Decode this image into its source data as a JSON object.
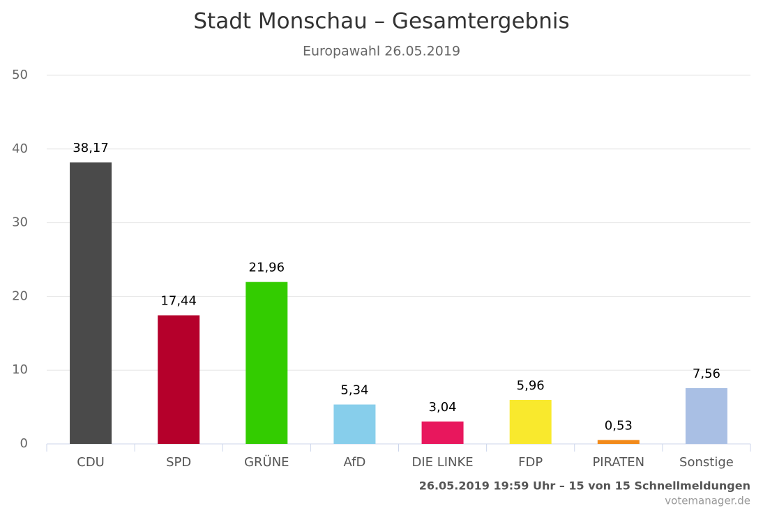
{
  "chart_data": {
    "type": "bar",
    "title": "Stadt Monschau – Gesamtergebnis",
    "subtitle": "Europawahl 26.05.2019",
    "categories": [
      "CDU",
      "SPD",
      "GRÜNE",
      "AfD",
      "DIE LINKE",
      "FDP",
      "PIRATEN",
      "Sonstige"
    ],
    "values": [
      38.17,
      17.44,
      21.96,
      5.34,
      3.04,
      5.96,
      0.53,
      7.56
    ],
    "value_labels": [
      "38,17",
      "17,44",
      "21,96",
      "5,34",
      "3,04",
      "5,96",
      "0,53",
      "7,56"
    ],
    "colors": [
      "#4a4a4a",
      "#b5002b",
      "#33cc00",
      "#87ceeb",
      "#e8175d",
      "#f9e92d",
      "#f28a1a",
      "#a9bfe4"
    ],
    "ylim": [
      0,
      50
    ],
    "yticks": [
      0,
      10,
      20,
      30,
      40,
      50
    ],
    "grid": true,
    "footnote": "26.05.2019 19:59 Uhr – 15 von 15 Schnellmeldungen",
    "source": "votemanager.de"
  }
}
